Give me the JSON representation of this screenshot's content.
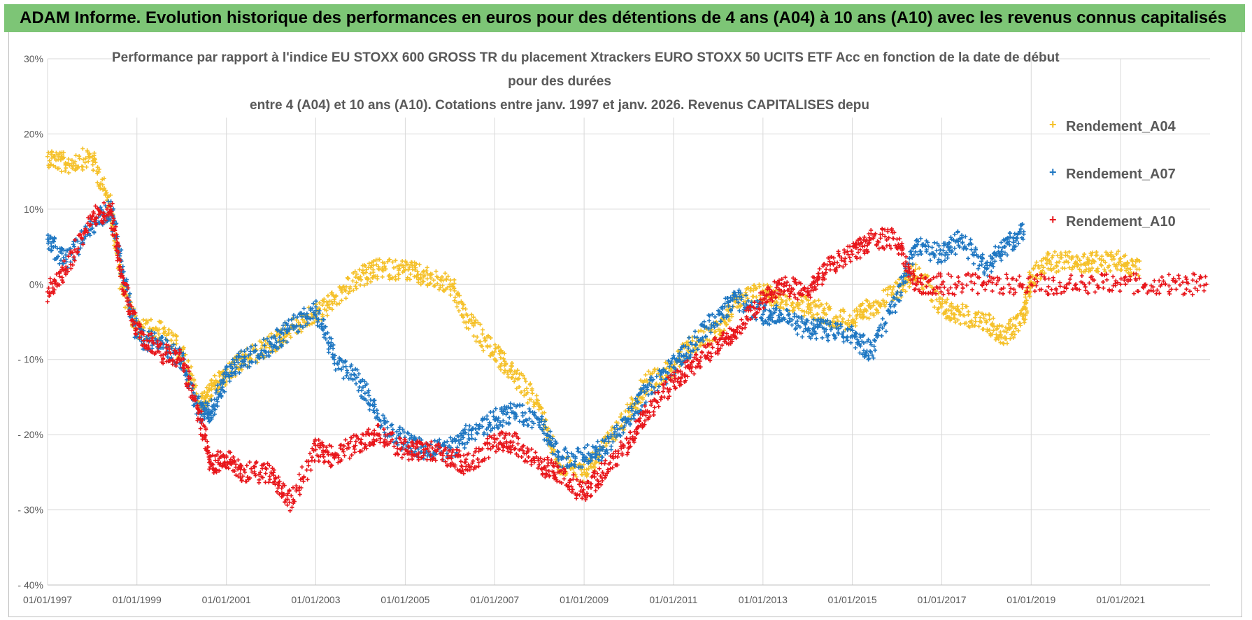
{
  "banner": {
    "title": "ADAM Informe. Evolution historique des performances en euros pour des détentions de 4 ans (A04) à 10 ans (A10) avec les revenus connus capitalisés"
  },
  "chart_data": {
    "type": "scatter",
    "title_lines": [
      "Performance par rapport à l'indice EU STOXX 600 GROSS TR  du placement Xtrackers EURO STOXX 50 UCITS ETF Acc en fonction de la date de début",
      "pour des durées",
      "entre 4 (A04) et 10 ans (A10).  Cotations entre janv. 1997 et janv. 2026. Revenus CAPITALISES depu"
    ],
    "xlabel": "",
    "ylabel": "",
    "ylim": [
      -0.4,
      0.3
    ],
    "xlim": [
      "1997-01-01",
      "2023-01-01"
    ],
    "y_ticks": [
      {
        "value": 0.3,
        "label": "30%"
      },
      {
        "value": 0.2,
        "label": "20%"
      },
      {
        "value": 0.1,
        "label": "10%"
      },
      {
        "value": 0.0,
        "label": "0%"
      },
      {
        "value": -0.1,
        "label": "- 10%"
      },
      {
        "value": -0.2,
        "label": "- 20%"
      },
      {
        "value": -0.3,
        "label": "- 30%"
      },
      {
        "value": -0.4,
        "label": "- 40%"
      }
    ],
    "x_ticks": [
      {
        "value": "1997-01-01",
        "label": "01/01/1997"
      },
      {
        "value": "1999-01-01",
        "label": "01/01/1999"
      },
      {
        "value": "2001-01-01",
        "label": "01/01/2001"
      },
      {
        "value": "2003-01-01",
        "label": "01/01/2003"
      },
      {
        "value": "2005-01-01",
        "label": "01/01/2005"
      },
      {
        "value": "2007-01-01",
        "label": "01/01/2007"
      },
      {
        "value": "2009-01-01",
        "label": "01/01/2009"
      },
      {
        "value": "2011-01-01",
        "label": "01/01/2011"
      },
      {
        "value": "2013-01-01",
        "label": "01/01/2013"
      },
      {
        "value": "2015-01-01",
        "label": "01/01/2015"
      },
      {
        "value": "2017-01-01",
        "label": "01/01/2017"
      },
      {
        "value": "2019-01-01",
        "label": "01/01/2019"
      },
      {
        "value": "2021-01-01",
        "label": "01/01/2021"
      }
    ],
    "grid": true,
    "legend_position": "right",
    "marker": "+",
    "series": [
      {
        "name": "Rendement_A04",
        "color": "#f5c12a",
        "x": [
          "1997-01-01",
          "1997-06-01",
          "1998-01-01",
          "1998-06-01",
          "1998-09-01",
          "1999-01-01",
          "1999-07-01",
          "2000-01-01",
          "2000-06-01",
          "2000-09-01",
          "2001-01-01",
          "2001-06-01",
          "2002-01-01",
          "2002-06-01",
          "2003-01-01",
          "2003-06-01",
          "2004-01-01",
          "2004-06-01",
          "2005-01-01",
          "2005-06-01",
          "2006-01-01",
          "2006-06-01",
          "2007-01-01",
          "2007-06-01",
          "2008-01-01",
          "2008-06-01",
          "2009-01-01",
          "2009-06-01",
          "2010-01-01",
          "2010-06-01",
          "2011-01-01",
          "2011-06-01",
          "2012-01-01",
          "2012-06-01",
          "2013-01-01",
          "2013-06-01",
          "2014-01-01",
          "2014-06-01",
          "2015-01-01",
          "2015-06-01",
          "2016-01-01",
          "2016-06-01",
          "2017-01-01",
          "2017-06-01",
          "2018-01-01",
          "2018-06-01",
          "2018-11-01",
          "2019-01-01",
          "2019-06-01",
          "2020-01-01",
          "2020-06-01",
          "2021-01-01",
          "2021-06-01"
        ],
        "y": [
          0.17,
          0.16,
          0.17,
          0.1,
          0.0,
          -0.06,
          -0.06,
          -0.09,
          -0.16,
          -0.14,
          -0.12,
          -0.1,
          -0.08,
          -0.06,
          -0.04,
          -0.02,
          0.01,
          0.02,
          0.02,
          0.01,
          0.0,
          -0.05,
          -0.09,
          -0.12,
          -0.16,
          -0.24,
          -0.25,
          -0.22,
          -0.17,
          -0.13,
          -0.11,
          -0.08,
          -0.06,
          -0.02,
          -0.01,
          -0.02,
          -0.03,
          -0.04,
          -0.05,
          -0.03,
          -0.01,
          0.02,
          -0.03,
          -0.04,
          -0.05,
          -0.07,
          -0.04,
          0.01,
          0.03,
          0.03,
          0.03,
          0.03,
          0.02
        ]
      },
      {
        "name": "Rendement_A07",
        "color": "#1f77c2",
        "x": [
          "1997-01-01",
          "1997-06-01",
          "1998-01-01",
          "1998-06-01",
          "1998-09-01",
          "1999-01-01",
          "1999-07-01",
          "2000-01-01",
          "2000-06-01",
          "2000-09-01",
          "2001-01-01",
          "2001-06-01",
          "2002-01-01",
          "2002-06-01",
          "2003-01-01",
          "2003-06-01",
          "2004-01-01",
          "2004-06-01",
          "2005-01-01",
          "2005-06-01",
          "2006-01-01",
          "2006-06-01",
          "2007-01-01",
          "2007-06-01",
          "2008-01-01",
          "2008-06-01",
          "2009-01-01",
          "2009-06-01",
          "2010-01-01",
          "2010-06-01",
          "2011-01-01",
          "2011-06-01",
          "2012-01-01",
          "2012-06-01",
          "2013-01-01",
          "2013-06-01",
          "2014-01-01",
          "2014-06-01",
          "2015-01-01",
          "2015-06-01",
          "2016-01-01",
          "2016-06-01",
          "2017-01-01",
          "2017-06-01",
          "2018-01-01",
          "2018-06-01",
          "2018-11-01"
        ],
        "y": [
          0.06,
          0.03,
          0.08,
          0.1,
          0.02,
          -0.07,
          -0.08,
          -0.1,
          -0.17,
          -0.17,
          -0.12,
          -0.1,
          -0.08,
          -0.06,
          -0.03,
          -0.1,
          -0.13,
          -0.18,
          -0.21,
          -0.22,
          -0.22,
          -0.2,
          -0.18,
          -0.17,
          -0.18,
          -0.23,
          -0.23,
          -0.22,
          -0.18,
          -0.14,
          -0.11,
          -0.08,
          -0.04,
          -0.02,
          -0.04,
          -0.04,
          -0.06,
          -0.06,
          -0.07,
          -0.09,
          -0.02,
          0.05,
          0.04,
          0.06,
          0.02,
          0.05,
          0.07
        ]
      },
      {
        "name": "Rendement_A10",
        "color": "#e8161b",
        "x": [
          "1997-01-01",
          "1997-06-01",
          "1998-01-01",
          "1998-06-01",
          "1998-09-01",
          "1999-01-01",
          "1999-07-01",
          "2000-01-01",
          "2000-06-01",
          "2000-09-01",
          "2001-01-01",
          "2001-06-01",
          "2002-01-01",
          "2002-06-01",
          "2003-01-01",
          "2003-06-01",
          "2004-01-01",
          "2004-06-01",
          "2005-01-01",
          "2005-06-01",
          "2006-01-01",
          "2006-06-01",
          "2007-01-01",
          "2007-06-01",
          "2008-01-01",
          "2008-06-01",
          "2009-01-01",
          "2009-06-01",
          "2010-01-01",
          "2010-06-01",
          "2011-01-01",
          "2011-06-01",
          "2012-01-01",
          "2012-06-01",
          "2013-01-01",
          "2013-06-01",
          "2014-01-01",
          "2014-06-01",
          "2015-01-01",
          "2015-06-01",
          "2016-01-01",
          "2016-06-01",
          "2017-01-01",
          "2018-01-01",
          "2019-01-01",
          "2020-01-01",
          "2021-01-01",
          "2022-01-01",
          "2022-12-01"
        ],
        "y": [
          -0.01,
          0.02,
          0.09,
          0.1,
          0.01,
          -0.06,
          -0.09,
          -0.1,
          -0.18,
          -0.24,
          -0.23,
          -0.25,
          -0.25,
          -0.29,
          -0.22,
          -0.23,
          -0.21,
          -0.2,
          -0.22,
          -0.22,
          -0.23,
          -0.24,
          -0.21,
          -0.21,
          -0.24,
          -0.25,
          -0.28,
          -0.25,
          -0.21,
          -0.17,
          -0.13,
          -0.11,
          -0.08,
          -0.06,
          -0.02,
          0.0,
          -0.01,
          0.02,
          0.04,
          0.06,
          0.06,
          0.0,
          0.0,
          0.0,
          0.0,
          0.0,
          0.0,
          0.0,
          0.0
        ]
      }
    ]
  }
}
